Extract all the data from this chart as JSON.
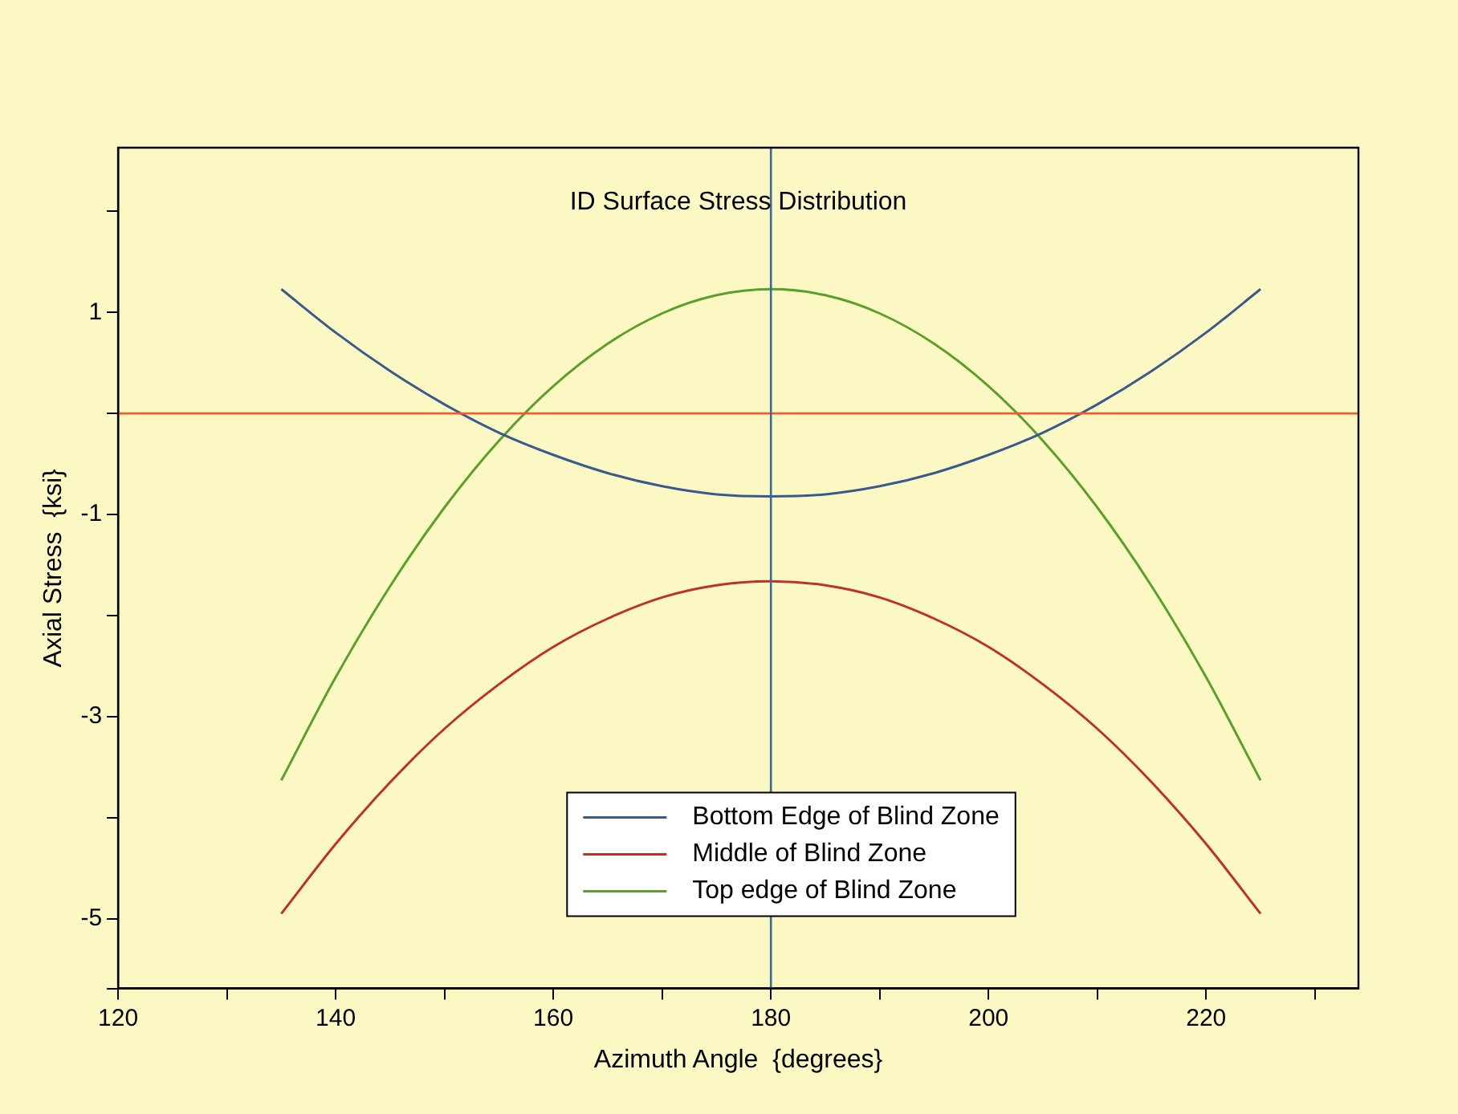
{
  "chart_data": {
    "type": "line",
    "title": "ID Surface Stress Distribution",
    "xlabel": "Azimuth Angle  {degrees}",
    "ylabel": "Axial Stress  {ksi}",
    "x": [
      135,
      140,
      145,
      150,
      155,
      160,
      165,
      170,
      175,
      180,
      185,
      190,
      195,
      200,
      205,
      210,
      215,
      220,
      225
    ],
    "series": [
      {
        "name": "Bottom Edge of Blind Zone",
        "color": "#3a5a8c",
        "values": [
          1.23,
          0.8,
          0.42,
          0.09,
          -0.19,
          -0.41,
          -0.59,
          -0.72,
          -0.8,
          -0.82,
          -0.8,
          -0.72,
          -0.59,
          -0.41,
          -0.19,
          0.09,
          0.42,
          0.8,
          1.23
        ]
      },
      {
        "name": "Middle of Blind Zone",
        "color": "#c0302a",
        "values": [
          -4.95,
          -4.26,
          -3.65,
          -3.12,
          -2.68,
          -2.31,
          -2.03,
          -1.82,
          -1.7,
          -1.66,
          -1.7,
          -1.82,
          -2.03,
          -2.31,
          -2.68,
          -3.12,
          -3.65,
          -4.26,
          -4.95
        ]
      },
      {
        "name": "Top edge of Blind Zone",
        "color": "#5aa02a",
        "values": [
          -3.63,
          -2.61,
          -1.71,
          -0.93,
          -0.27,
          0.27,
          0.69,
          0.99,
          1.17,
          1.23,
          1.17,
          0.99,
          0.69,
          0.27,
          -0.27,
          -0.93,
          -1.71,
          -2.61,
          -3.63
        ]
      }
    ],
    "xlim": [
      120,
      234
    ],
    "xticks": [
      120,
      {
        "value": 130,
        "label": null
      },
      140,
      {
        "value": 150,
        "label": null
      },
      160,
      {
        "value": 170,
        "label": null
      },
      180,
      {
        "value": 190,
        "label": null
      },
      200,
      {
        "value": 210,
        "label": null
      },
      220,
      {
        "value": 230,
        "label": null
      }
    ],
    "ylim": [
      -5.69,
      2.63
    ],
    "yticks": [
      {
        "value": -5.69,
        "label": null
      },
      -5,
      {
        "value": -4,
        "label": null
      },
      -3,
      {
        "value": -2,
        "label": null
      },
      -1,
      {
        "value": 0,
        "label": null
      },
      1,
      {
        "value": 2,
        "label": null
      }
    ],
    "ref_lines": [
      {
        "axis": "y",
        "value": 0,
        "color": "#e8602a"
      },
      {
        "axis": "x",
        "value": 180,
        "color": "#3a6a9a"
      }
    ],
    "grid": false,
    "legend": "bottom",
    "marker": "none",
    "line_style": "solid"
  }
}
